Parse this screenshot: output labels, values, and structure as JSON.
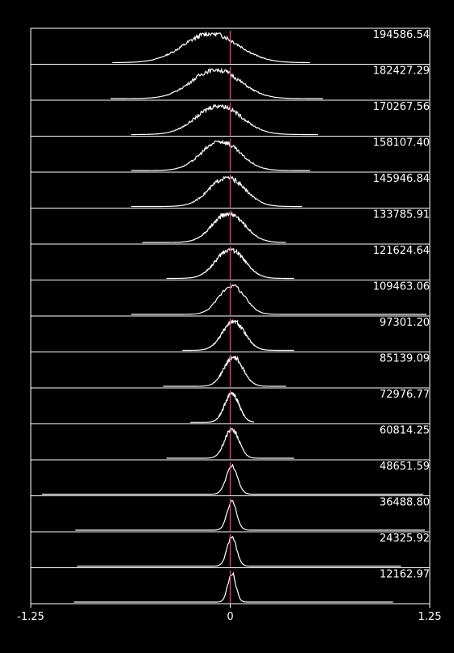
{
  "chart_data": {
    "type": "area",
    "title": "",
    "xlabel": "",
    "ylabel": "",
    "xlim": [
      -1.25,
      1.25
    ],
    "x_ticks": [
      "-1.25",
      "0",
      "1.25"
    ],
    "reference_line_x": 0,
    "colors": {
      "background": "#000000",
      "curve": "#ffffff",
      "frame": "#ffffff",
      "reference": "#e0407a"
    },
    "series": [
      {
        "label": "194586.54",
        "mean": -0.12,
        "std": 0.17,
        "range": [
          -0.74,
          0.5
        ]
      },
      {
        "label": "182427.29",
        "mean": -0.09,
        "std": 0.15,
        "range": [
          -0.75,
          0.58
        ]
      },
      {
        "label": "170267.56",
        "mean": -0.07,
        "std": 0.14,
        "range": [
          -0.62,
          0.55
        ]
      },
      {
        "label": "158107.40",
        "mean": -0.06,
        "std": 0.12,
        "range": [
          -0.62,
          0.5
        ]
      },
      {
        "label": "145946.84",
        "mean": -0.02,
        "std": 0.11,
        "range": [
          -0.62,
          0.45
        ]
      },
      {
        "label": "133785.91",
        "mean": -0.01,
        "std": 0.1,
        "range": [
          -0.55,
          0.35
        ]
      },
      {
        "label": "121624.64",
        "mean": 0.0,
        "std": 0.09,
        "range": [
          -0.4,
          0.4
        ]
      },
      {
        "label": "109463.06",
        "mean": 0.01,
        "std": 0.08,
        "range": [
          -0.62,
          1.23
        ]
      },
      {
        "label": "97301.20",
        "mean": 0.02,
        "std": 0.07,
        "range": [
          -0.3,
          0.4
        ]
      },
      {
        "label": "85139.09",
        "mean": 0.02,
        "std": 0.06,
        "range": [
          -0.42,
          0.35
        ]
      },
      {
        "label": "72976.77",
        "mean": 0.01,
        "std": 0.045,
        "range": [
          -0.25,
          0.15
        ]
      },
      {
        "label": "60814.25",
        "mean": 0.01,
        "std": 0.045,
        "range": [
          -0.4,
          0.4
        ]
      },
      {
        "label": "48651.59",
        "mean": 0.01,
        "std": 0.035,
        "range": [
          -1.18,
          1.21
        ]
      },
      {
        "label": "36488.80",
        "mean": 0.01,
        "std": 0.03,
        "range": [
          -0.97,
          1.22
        ]
      },
      {
        "label": "24325.92",
        "mean": 0.01,
        "std": 0.03,
        "range": [
          -0.96,
          1.07
        ]
      },
      {
        "label": "12162.97",
        "mean": 0.01,
        "std": 0.025,
        "range": [
          -0.98,
          1.02
        ]
      }
    ]
  }
}
